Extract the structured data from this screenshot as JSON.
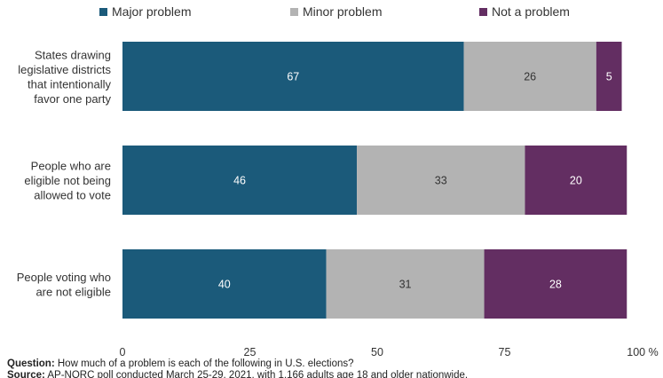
{
  "chart_data": {
    "type": "bar",
    "orientation": "horizontal",
    "stacked": true,
    "categories": [
      [
        "States drawing",
        "legislative districts",
        "that intentionally",
        "favor one party"
      ],
      [
        "People who are",
        "eligible not being",
        "allowed to vote"
      ],
      [
        "People voting who",
        "are not eligible"
      ]
    ],
    "series": [
      {
        "name": "Major problem",
        "color": "#1b5a7a",
        "values": [
          67,
          46,
          40
        ]
      },
      {
        "name": "Minor problem",
        "color": "#b3b3b3",
        "values": [
          26,
          33,
          31
        ]
      },
      {
        "name": "Not a problem",
        "color": "#632e62",
        "values": [
          5,
          20,
          28
        ]
      }
    ],
    "xlim": [
      0,
      100
    ],
    "xticks": [
      "0",
      "25",
      "50",
      "75",
      "100 %"
    ],
    "legend_position": "top",
    "grid": false
  },
  "footer": {
    "question_label": "Question:",
    "question_text": "How much of a problem is each of the following in U.S. elections?",
    "source_label": "Source:",
    "source_text": "AP-NORC poll conducted March 25-29, 2021, with 1,166 adults age 18 and older nationwide."
  }
}
